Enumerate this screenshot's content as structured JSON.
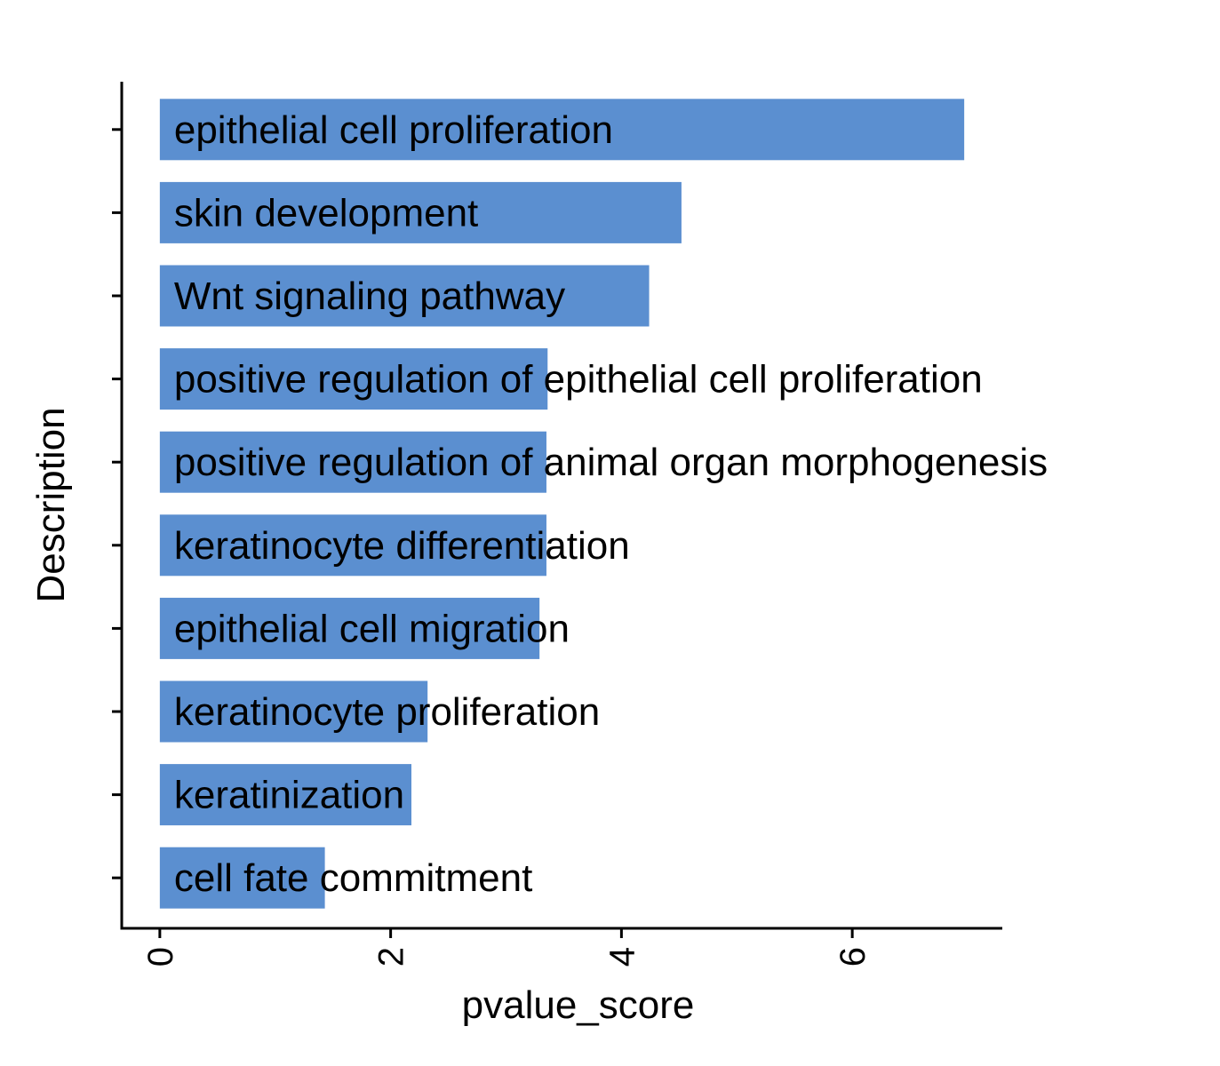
{
  "chart_data": {
    "type": "bar",
    "orientation": "horizontal",
    "categories": [
      "epithelial cell proliferation",
      "skin development",
      "Wnt signaling pathway",
      "positive regulation of epithelial cell proliferation",
      "positive regulation of animal organ morphogenesis",
      "keratinocyte differentiation",
      "epithelial cell migration",
      "keratinocyte proliferation",
      "keratinization",
      "cell fate commitment"
    ],
    "values": [
      6.97,
      4.52,
      4.24,
      3.36,
      3.35,
      3.35,
      3.29,
      2.32,
      2.18,
      1.43
    ],
    "xlabel": "pvalue_score",
    "ylabel": "Description",
    "xlim": [
      -0.33,
      7.3
    ],
    "xticks": [
      0,
      2,
      4,
      6
    ],
    "xtick_labels": [
      "0",
      "2",
      "4",
      "6"
    ],
    "grid": false,
    "legend": "none",
    "bar_color": "#5b8fd0",
    "axis_color": "#000000"
  }
}
